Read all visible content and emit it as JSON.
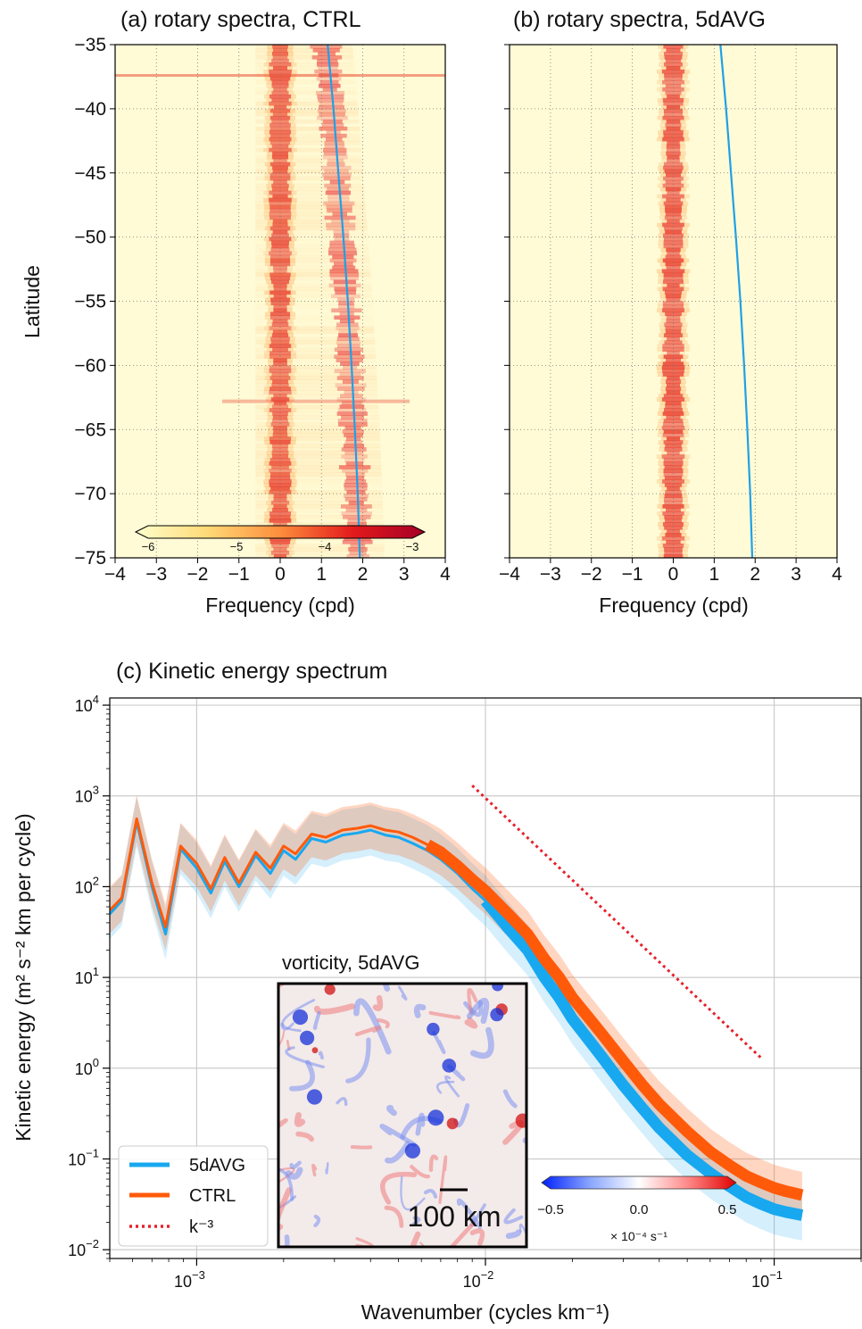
{
  "panels": {
    "a": {
      "title": "(a) rotary spectra, CTRL",
      "xlabel": "Frequency (cpd)",
      "ylabel": "Latitude",
      "colorbar_ticks": [
        "−6",
        "−5",
        "−4",
        "−3"
      ]
    },
    "b": {
      "title": "(b) rotary spectra, 5dAVG",
      "xlabel": "Frequency (cpd)"
    },
    "c": {
      "title": "(c) Kinetic energy spectrum",
      "xlabel": "Wavenumber (cycles km⁻¹)",
      "ylabel": "Kinetic energy (m² s⁻² km per cycle)",
      "legend": [
        "5dAVG",
        "CTRL",
        "k⁻³"
      ],
      "inset": {
        "title": "vorticity, 5dAVG",
        "scale_label": "100 km",
        "colorbar_ticks": [
          "−0.5",
          "0.0",
          "0.5"
        ],
        "colorbar_unit": "× 10⁻⁴ s⁻¹"
      }
    }
  },
  "colors": {
    "ctrl": "#ff5a0a",
    "avg": "#18a8f0",
    "slope": "#e8202a",
    "inertial": "#1fa0e8",
    "heat_low": "#fffbd6",
    "heat_high": "#c8001e"
  },
  "chart_data": [
    {
      "type": "heatmap",
      "title": "(a) rotary spectra, CTRL",
      "xlabel": "Frequency (cpd)",
      "ylabel": "Latitude",
      "xlim": [
        -4,
        4
      ],
      "ylim": [
        -75,
        -35
      ],
      "xticks": [
        -4,
        -3,
        -2,
        -1,
        0,
        1,
        2,
        3,
        4
      ],
      "yticks": [
        -35,
        -40,
        -45,
        -50,
        -55,
        -60,
        -65,
        -70,
        -75
      ],
      "colorbar": {
        "range": [
          -6,
          -3
        ],
        "ticks": [
          -6,
          -5,
          -4,
          -3
        ],
        "colormap": "YlOrRd"
      },
      "grid": true,
      "features": [
        {
          "name": "zero-frequency band",
          "frequency": 0,
          "log10_power": -3.3
        },
        {
          "name": "inertial band",
          "frequency": "f(latitude)",
          "log10_power": -3.7
        }
      ],
      "inertial_frequency_curve": {
        "latitude": [
          -35,
          -40,
          -45,
          -50,
          -55,
          -60,
          -65,
          -70,
          -75
        ],
        "frequency": [
          1.15,
          1.29,
          1.41,
          1.53,
          1.64,
          1.73,
          1.81,
          1.88,
          1.93
        ]
      }
    },
    {
      "type": "heatmap",
      "title": "(b) rotary spectra, 5dAVG",
      "xlabel": "Frequency (cpd)",
      "xlim": [
        -4,
        4
      ],
      "ylim": [
        -75,
        -35
      ],
      "xticks": [
        -4,
        -3,
        -2,
        -1,
        0,
        1,
        2,
        3,
        4
      ],
      "grid": true,
      "features": [
        {
          "name": "zero-frequency band",
          "frequency": 0,
          "log10_power": -3.3
        }
      ],
      "inertial_frequency_curve": {
        "latitude": [
          -35,
          -40,
          -45,
          -50,
          -55,
          -60,
          -65,
          -70,
          -75
        ],
        "frequency": [
          1.15,
          1.29,
          1.41,
          1.53,
          1.64,
          1.73,
          1.81,
          1.88,
          1.93
        ]
      }
    },
    {
      "type": "line",
      "title": "(c) Kinetic energy spectrum",
      "xlabel": "Wavenumber (cycles km⁻¹)",
      "ylabel": "Kinetic energy (m² s⁻² km per cycle)",
      "xscale": "log",
      "yscale": "log",
      "xlim": [
        0.0005,
        0.2
      ],
      "ylim": [
        0.008,
        12000
      ],
      "xticks": [
        0.001,
        0.01,
        0.1
      ],
      "yticks": [
        0.01,
        0.1,
        1,
        10,
        100,
        1000,
        10000
      ],
      "grid": true,
      "legend_position": "bottom-left",
      "series": [
        {
          "name": "5dAVG",
          "x": [
            0.0005,
            0.00055,
            0.00062,
            0.0007,
            0.00078,
            0.00088,
            0.001,
            0.00112,
            0.00125,
            0.0014,
            0.0016,
            0.0018,
            0.002,
            0.0022,
            0.0025,
            0.0028,
            0.0032,
            0.0036,
            0.004,
            0.0045,
            0.005,
            0.0056,
            0.0063,
            0.007,
            0.008,
            0.009,
            0.01,
            0.012,
            0.014,
            0.016,
            0.018,
            0.02,
            0.025,
            0.03,
            0.035,
            0.04,
            0.05,
            0.06,
            0.07,
            0.08,
            0.09,
            0.1,
            0.11,
            0.125
          ],
          "y": [
            50,
            70,
            520,
            100,
            30,
            260,
            160,
            85,
            190,
            100,
            220,
            140,
            250,
            200,
            340,
            310,
            370,
            390,
            420,
            370,
            350,
            300,
            250,
            200,
            140,
            95,
            70,
            35,
            20,
            10,
            6,
            3.5,
            1.4,
            0.65,
            0.36,
            0.22,
            0.11,
            0.07,
            0.05,
            0.038,
            0.032,
            0.028,
            0.026,
            0.024
          ]
        },
        {
          "name": "CTRL",
          "x": [
            0.0005,
            0.00055,
            0.00062,
            0.0007,
            0.00078,
            0.00088,
            0.001,
            0.00112,
            0.00125,
            0.0014,
            0.0016,
            0.0018,
            0.002,
            0.0022,
            0.0025,
            0.0028,
            0.0032,
            0.0036,
            0.004,
            0.0045,
            0.005,
            0.0056,
            0.0063,
            0.007,
            0.008,
            0.009,
            0.01,
            0.012,
            0.014,
            0.016,
            0.018,
            0.02,
            0.025,
            0.03,
            0.035,
            0.04,
            0.05,
            0.06,
            0.07,
            0.08,
            0.09,
            0.1,
            0.11,
            0.125
          ],
          "y": [
            55,
            75,
            560,
            110,
            36,
            280,
            180,
            95,
            210,
            110,
            240,
            160,
            280,
            230,
            380,
            350,
            420,
            440,
            470,
            420,
            400,
            350,
            290,
            240,
            170,
            120,
            90,
            50,
            30,
            16,
            10,
            6,
            2.5,
            1.2,
            0.65,
            0.4,
            0.2,
            0.12,
            0.085,
            0.065,
            0.055,
            0.048,
            0.044,
            0.04
          ]
        },
        {
          "name": "k⁻³",
          "x": [
            0.009,
            0.09
          ],
          "y": [
            1300,
            1.3
          ]
        }
      ],
      "inset": {
        "title": "vorticity, 5dAVG",
        "scale_bar": "100 km",
        "colorbar": {
          "range": [
            -0.5,
            0.5
          ],
          "ticks": [
            -0.5,
            0.0,
            0.5
          ],
          "unit": "× 10⁻⁴ s⁻¹",
          "colormap": "bwr"
        }
      }
    }
  ]
}
